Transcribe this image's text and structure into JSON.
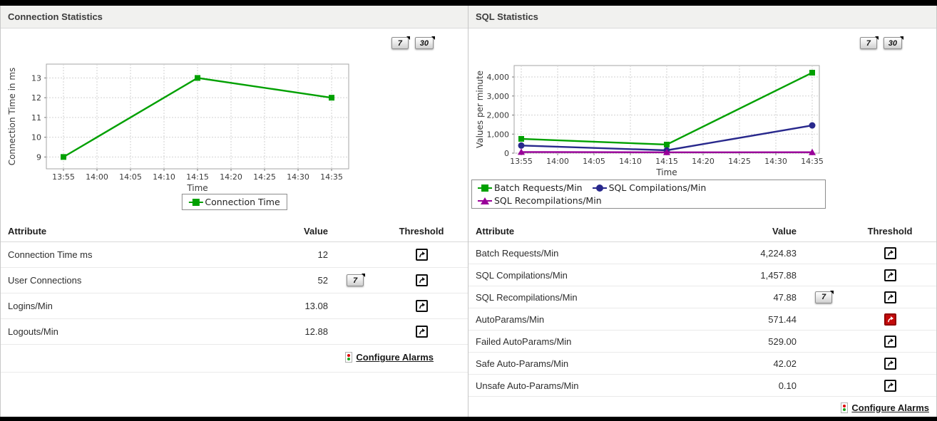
{
  "panels": [
    {
      "title": "Connection Statistics",
      "range_buttons": [
        "7",
        "30"
      ],
      "table": {
        "headers": [
          "Attribute",
          "Value",
          "Threshold"
        ],
        "rows": [
          {
            "attribute": "Connection Time ms",
            "value": "12",
            "threshold_state": "normal"
          },
          {
            "attribute": "User Connections",
            "value": "52",
            "trend_button": "7",
            "threshold_state": "normal"
          },
          {
            "attribute": "Logins/Min",
            "value": "13.08",
            "threshold_state": "normal"
          },
          {
            "attribute": "Logouts/Min",
            "value": "12.88",
            "threshold_state": "normal"
          }
        ],
        "footer_link": "Configure Alarms"
      }
    },
    {
      "title": "SQL Statistics",
      "range_buttons": [
        "7",
        "30"
      ],
      "table": {
        "headers": [
          "Attribute",
          "Value",
          "Threshold"
        ],
        "rows": [
          {
            "attribute": "Batch Requests/Min",
            "value": "4,224.83",
            "threshold_state": "normal"
          },
          {
            "attribute": "SQL Compilations/Min",
            "value": "1,457.88",
            "threshold_state": "normal"
          },
          {
            "attribute": "SQL Recompilations/Min",
            "value": "47.88",
            "trend_button": "7",
            "threshold_state": "normal"
          },
          {
            "attribute": "AutoParams/Min",
            "value": "571.44",
            "threshold_state": "alert"
          },
          {
            "attribute": "Failed AutoParams/Min",
            "value": "529.00",
            "threshold_state": "normal"
          },
          {
            "attribute": "Safe Auto-Params/Min",
            "value": "42.02",
            "threshold_state": "normal"
          },
          {
            "attribute": "Unsafe Auto-Params/Min",
            "value": "0.10",
            "threshold_state": "normal"
          }
        ],
        "footer_link": "Configure Alarms"
      }
    }
  ],
  "chart_data": [
    {
      "type": "line",
      "title": "",
      "xlabel": "Time",
      "ylabel": "Connection Time in ms",
      "x_ticks": [
        "13:55",
        "14:00",
        "14:05",
        "14:10",
        "14:15",
        "14:20",
        "14:25",
        "14:30",
        "14:35"
      ],
      "y_ticks": [
        9,
        10,
        11,
        12,
        13
      ],
      "ylim": [
        8.4,
        13.7
      ],
      "grid": true,
      "legend_position": "bottom-center",
      "series": [
        {
          "name": "Connection Time",
          "color": "#00a000",
          "marker": "square",
          "points": [
            {
              "x": "13:55",
              "y": 9
            },
            {
              "x": "14:15",
              "y": 13
            },
            {
              "x": "14:35",
              "y": 12
            }
          ]
        }
      ]
    },
    {
      "type": "line",
      "title": "",
      "xlabel": "Time",
      "ylabel": "Values per minute",
      "x_ticks": [
        "13:55",
        "14:00",
        "14:05",
        "14:10",
        "14:15",
        "14:20",
        "14:25",
        "14:30",
        "14:35"
      ],
      "y_ticks": [
        0,
        1000,
        2000,
        3000,
        4000
      ],
      "ylim": [
        0,
        4600
      ],
      "grid": true,
      "legend_position": "bottom-left",
      "series": [
        {
          "name": "Batch Requests/Min",
          "color": "#00a000",
          "marker": "square",
          "points": [
            {
              "x": "13:55",
              "y": 750
            },
            {
              "x": "14:15",
              "y": 450
            },
            {
              "x": "14:35",
              "y": 4224.83
            }
          ]
        },
        {
          "name": "SQL Compilations/Min",
          "color": "#28288c",
          "marker": "circle",
          "points": [
            {
              "x": "13:55",
              "y": 400
            },
            {
              "x": "14:15",
              "y": 150
            },
            {
              "x": "14:35",
              "y": 1457.88
            }
          ]
        },
        {
          "name": "SQL Recompilations/Min",
          "color": "#990099",
          "marker": "triangle",
          "points": [
            {
              "x": "13:55",
              "y": 60
            },
            {
              "x": "14:15",
              "y": 45
            },
            {
              "x": "14:35",
              "y": 47.88
            }
          ]
        }
      ]
    }
  ],
  "colors": {
    "series_green": "#00a000",
    "series_navy": "#28288c",
    "series_purple": "#990099",
    "alert_red": "#c50a0a",
    "header_bg": "#f1f1ef"
  }
}
